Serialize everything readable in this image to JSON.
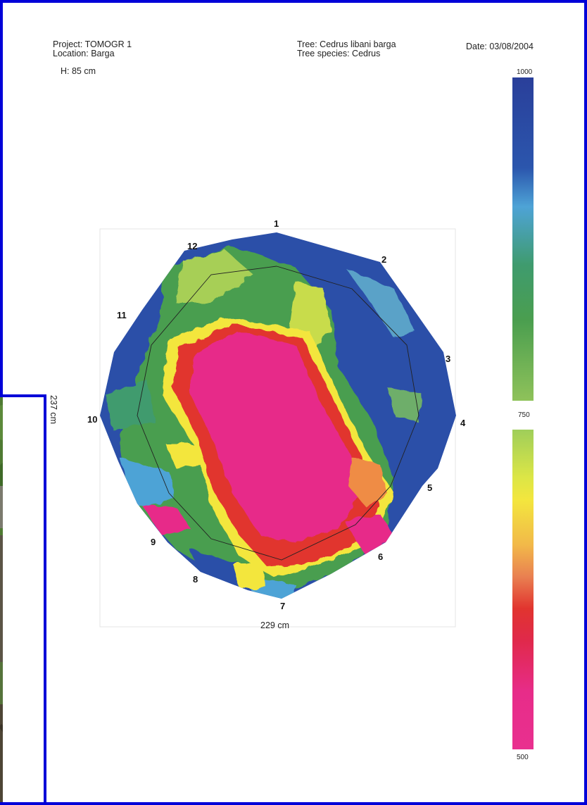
{
  "header": {
    "project": "Project: TOMOGR 1",
    "location": "Location: Barga",
    "height": "H: 85 cm",
    "tree": "Tree: Cedrus libani  barga",
    "species": "Tree species: Cedrus",
    "date": "Date: 03/08/2004"
  },
  "dimensions": {
    "width_label": "229 cm",
    "height_label": "237 cm"
  },
  "sensors": [
    "1",
    "2",
    "3",
    "4",
    "5",
    "6",
    "7",
    "8",
    "9",
    "10",
    "11",
    "12"
  ],
  "scale": {
    "max": "1000",
    "mid": "750",
    "min": "500"
  },
  "colors": {
    "frame": "#0000d8",
    "solid_wood": "#2b4fa8",
    "decay": "#e72c89",
    "low": "#e1342f",
    "medium": "#f3e63e",
    "sound": "#4a9e4f"
  }
}
